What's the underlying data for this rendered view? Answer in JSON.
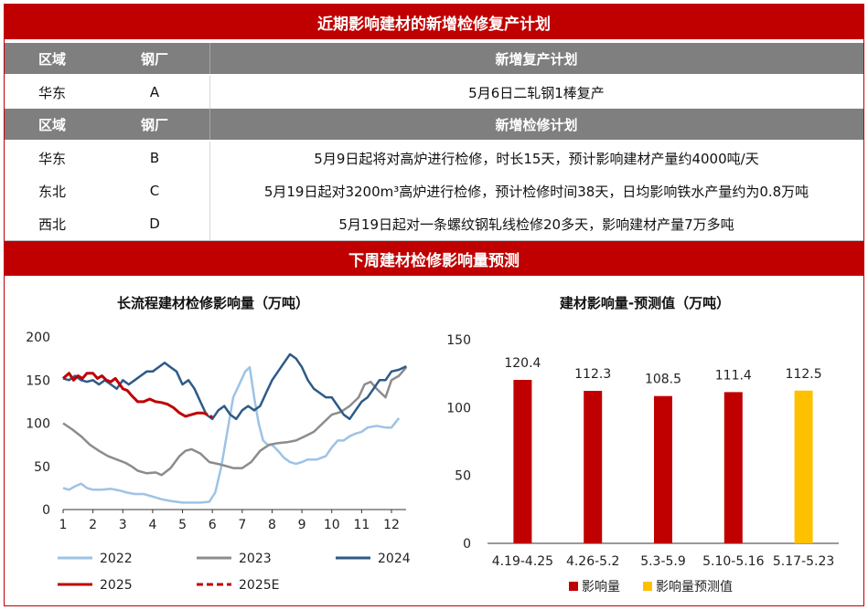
{
  "table": {
    "title": "近期影响建材的新增检修复产计划",
    "sections": [
      {
        "headers": [
          "区域",
          "钢厂",
          "新增复产计划"
        ],
        "rows": [
          [
            "华东",
            "A",
            "5月6日二轧钢1棒复产"
          ]
        ]
      },
      {
        "headers": [
          "区域",
          "钢厂",
          "新增检修计划"
        ],
        "rows": [
          [
            "华东",
            "B",
            "5月9日起将对高炉进行检修，时长15天，预计影响建材产量约4000吨/天"
          ],
          [
            "东北",
            "C",
            "5月19日起对3200m³高炉进行检修，预计检修时间38天，日均影响铁水产量约为0.8万吨"
          ],
          [
            "西北",
            "D",
            "5月19日起对一条螺纹钢轧线检修20多天，影响建材产量7万多吨"
          ]
        ]
      }
    ]
  },
  "forecast_banner": "下周建材检修影响量预测",
  "colors": {
    "banner_red": "#c00000",
    "header_gray": "#7f7f7f",
    "s2022": "#9dc3e6",
    "s2023": "#8c8c8c",
    "s2024": "#2e5a87",
    "s2025": "#c00000",
    "bar_actual": "#c00000",
    "bar_forecast": "#ffc000"
  },
  "chart_data": [
    {
      "type": "line",
      "title": "长流程建材检修影响量（万吨）",
      "ylim": [
        0,
        200
      ],
      "yticks": [
        0,
        50,
        100,
        150,
        200
      ],
      "xlim": [
        1,
        12.5
      ],
      "xticks": [
        "1",
        "2",
        "3",
        "4",
        "5",
        "6",
        "7",
        "8",
        "9",
        "10",
        "11",
        "12"
      ],
      "grid": false,
      "legend_position": "bottom",
      "series": [
        {
          "name": "2022",
          "style": "solid",
          "color": "#9dc3e6",
          "x": [
            1,
            1.2,
            1.4,
            1.6,
            1.8,
            2,
            2.3,
            2.6,
            2.9,
            3.1,
            3.4,
            3.7,
            4,
            4.3,
            4.6,
            5,
            5.3,
            5.6,
            5.9,
            6.1,
            6.3,
            6.5,
            6.7,
            6.9,
            7.1,
            7.25,
            7.4,
            7.55,
            7.7,
            7.85,
            8,
            8.2,
            8.4,
            8.6,
            8.8,
            9,
            9.2,
            9.5,
            9.8,
            10,
            10.2,
            10.4,
            10.6,
            10.8,
            11,
            11.2,
            11.5,
            11.8,
            12,
            12.25
          ],
          "y": [
            25,
            23,
            27,
            30,
            25,
            23,
            23,
            24,
            22,
            20,
            18,
            18,
            15,
            12,
            10,
            8,
            8,
            8,
            9,
            20,
            50,
            90,
            130,
            145,
            160,
            165,
            130,
            100,
            80,
            75,
            75,
            68,
            60,
            55,
            53,
            55,
            58,
            58,
            62,
            72,
            80,
            80,
            85,
            88,
            90,
            95,
            97,
            95,
            95,
            106
          ]
        },
        {
          "name": "2023",
          "style": "solid",
          "color": "#8c8c8c",
          "x": [
            1,
            1.3,
            1.6,
            1.9,
            2.2,
            2.5,
            2.8,
            3.1,
            3.3,
            3.5,
            3.8,
            4.1,
            4.3,
            4.6,
            4.9,
            5.1,
            5.3,
            5.6,
            5.9,
            6.3,
            6.7,
            7,
            7.3,
            7.6,
            7.9,
            8.2,
            8.5,
            8.8,
            9.1,
            9.4,
            9.7,
            10,
            10.3,
            10.6,
            10.9,
            11.1,
            11.3,
            11.5,
            11.8,
            12,
            12.25,
            12.5
          ],
          "y": [
            100,
            93,
            85,
            75,
            68,
            62,
            58,
            54,
            50,
            45,
            42,
            43,
            40,
            48,
            62,
            68,
            70,
            65,
            55,
            52,
            48,
            48,
            55,
            68,
            75,
            77,
            78,
            80,
            85,
            90,
            100,
            110,
            113,
            120,
            130,
            145,
            148,
            140,
            130,
            150,
            155,
            165
          ]
        },
        {
          "name": "2024",
          "style": "solid",
          "color": "#2e5a87",
          "x": [
            1,
            1.2,
            1.4,
            1.6,
            1.8,
            2,
            2.2,
            2.4,
            2.6,
            2.8,
            3,
            3.2,
            3.4,
            3.6,
            3.8,
            4,
            4.2,
            4.4,
            4.6,
            4.8,
            5,
            5.2,
            5.4,
            5.6,
            5.8,
            6,
            6.2,
            6.4,
            6.6,
            6.8,
            7,
            7.2,
            7.4,
            7.6,
            7.8,
            8,
            8.2,
            8.4,
            8.6,
            8.8,
            9,
            9.2,
            9.4,
            9.6,
            9.8,
            10,
            10.2,
            10.4,
            10.6,
            10.8,
            11,
            11.2,
            11.4,
            11.6,
            11.8,
            12,
            12.25,
            12.5
          ],
          "y": [
            152,
            150,
            155,
            150,
            148,
            150,
            145,
            150,
            145,
            140,
            150,
            145,
            150,
            155,
            160,
            160,
            165,
            170,
            165,
            160,
            145,
            150,
            140,
            125,
            110,
            105,
            115,
            120,
            110,
            105,
            115,
            120,
            115,
            120,
            135,
            150,
            160,
            170,
            180,
            175,
            165,
            150,
            140,
            135,
            130,
            130,
            120,
            110,
            105,
            115,
            125,
            130,
            140,
            150,
            150,
            160,
            162,
            166
          ]
        },
        {
          "name": "2025",
          "style": "solid",
          "color": "#c00000",
          "x": [
            1,
            1.1,
            1.2,
            1.35,
            1.5,
            1.65,
            1.8,
            2,
            2.15,
            2.3,
            2.45,
            2.6,
            2.75,
            2.9,
            3,
            3.15,
            3.3,
            3.5,
            3.7,
            3.9,
            4.1,
            4.3,
            4.5,
            4.7,
            4.9,
            5.1,
            5.3,
            5.5,
            5.7
          ],
          "y": [
            152,
            155,
            158,
            150,
            155,
            152,
            158,
            158,
            152,
            155,
            150,
            148,
            152,
            145,
            140,
            138,
            132,
            125,
            125,
            128,
            125,
            124,
            122,
            118,
            112,
            108,
            110,
            112,
            112
          ]
        },
        {
          "name": "2025E",
          "style": "dashed",
          "color": "#c00000",
          "x": [
            5.7,
            5.85,
            6
          ],
          "y": [
            112,
            110,
            107
          ]
        }
      ]
    },
    {
      "type": "bar",
      "title": "建材影响量-预测值（万吨）",
      "categories": [
        "4.19-4.25",
        "4.26-5.2",
        "5.3-5.9",
        "5.10-5.16",
        "5.17-5.23"
      ],
      "ylim": [
        0,
        150
      ],
      "yticks": [
        0,
        50,
        100,
        150
      ],
      "grid": false,
      "legend_position": "bottom",
      "series": [
        {
          "name": "影响量",
          "color": "#c00000",
          "values": [
            120.4,
            112.3,
            108.5,
            111.4,
            null
          ]
        },
        {
          "name": "影响量预测值",
          "color": "#ffc000",
          "values": [
            null,
            null,
            null,
            null,
            112.5
          ]
        }
      ],
      "data_labels": [
        "120.4",
        "112.3",
        "108.5",
        "111.4",
        "112.5"
      ]
    }
  ]
}
